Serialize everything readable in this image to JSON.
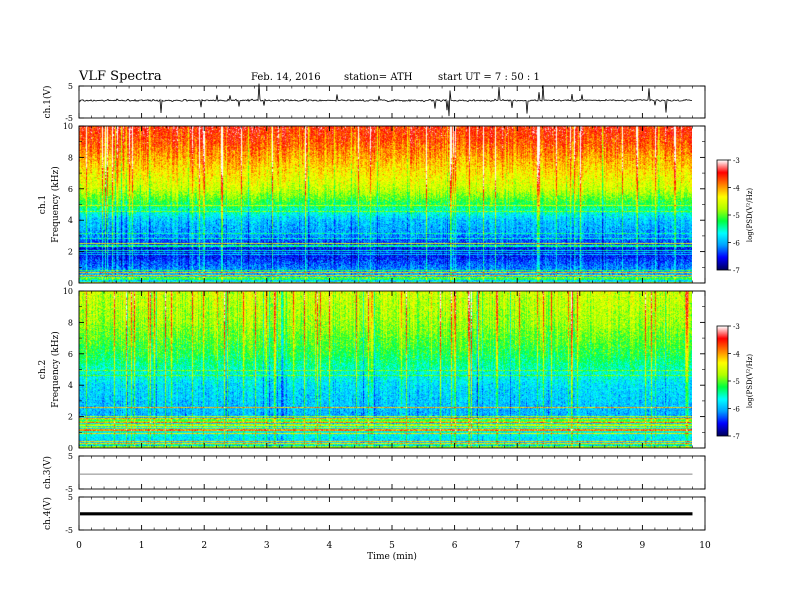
{
  "header": {
    "title": "VLF  Spectra",
    "date": "Feb. 14, 2016",
    "station": "station= ATH",
    "start": "start  UT  =   7  : 50 : 1"
  },
  "chart_data": {
    "type": "heatmap",
    "title": "VLF  Spectra",
    "xlabel": "Time  (min)",
    "xlim": [
      0,
      10
    ],
    "x_ticks": [
      "0",
      "1",
      "2",
      "3",
      "4",
      "5",
      "6",
      "7",
      "8",
      "9",
      "10"
    ],
    "data_end_min": 9.8,
    "colormap": [
      "#000060",
      "#0000ff",
      "#00a0ff",
      "#00ffff",
      "#00ff40",
      "#b0ff00",
      "#ffff00",
      "#ff8000",
      "#ff0000",
      "#ffffff"
    ],
    "colorbar": {
      "label": "log(PSD(V²/Hz)",
      "ticks": [
        "-3",
        "-4",
        "-5",
        "-6",
        "-7"
      ],
      "range": [
        -7,
        -3
      ]
    },
    "panels": [
      {
        "name": "ch1-waveform",
        "type": "line",
        "ylabel": "ch.1(V)",
        "ylim": [
          -5,
          5
        ],
        "y_ticks": [
          "5",
          "-5"
        ],
        "description_level_V": 0.5
      },
      {
        "name": "ch1-spectrogram",
        "type": "heatmap",
        "ylabel_top": "ch.1",
        "ylabel": "Frequency  (kHz)",
        "ylim": [
          0,
          10
        ],
        "y_ticks": [
          "0",
          "2",
          "4",
          "6",
          "8",
          "10"
        ],
        "band_log_psd": [
          [
            0,
            -5.8
          ],
          [
            1,
            -6.2
          ],
          [
            2,
            -6.6
          ],
          [
            3,
            -6.1
          ],
          [
            4,
            -5.9
          ],
          [
            5,
            -5.2
          ],
          [
            6,
            -4.6
          ],
          [
            7,
            -4.3
          ],
          [
            8,
            -4.0
          ],
          [
            9,
            -3.7
          ],
          [
            10,
            -3.5
          ]
        ]
      },
      {
        "name": "ch2-spectrogram",
        "type": "heatmap",
        "ylabel_top": "ch.2",
        "ylabel": "Frequency  (kHz)",
        "ylim": [
          0,
          10
        ],
        "y_ticks": [
          "0",
          "2",
          "4",
          "6",
          "8",
          "10"
        ],
        "band_log_psd": [
          [
            0,
            -6.0
          ],
          [
            1,
            -5.6
          ],
          [
            2,
            -6.0
          ],
          [
            3,
            -5.9
          ],
          [
            4,
            -5.8
          ],
          [
            5,
            -5.5
          ],
          [
            6,
            -5.2
          ],
          [
            7,
            -5.0
          ],
          [
            8,
            -4.8
          ],
          [
            9,
            -4.7
          ],
          [
            10,
            -4.6
          ]
        ]
      },
      {
        "name": "ch3-waveform",
        "type": "line",
        "ylabel": "ch.3(V)",
        "ylim": [
          -5,
          5
        ],
        "y_ticks": [
          "5",
          "-5"
        ],
        "description_level_V": -0.5
      },
      {
        "name": "ch4-waveform",
        "type": "line",
        "ylabel": "ch.4(V)",
        "ylim": [
          -5,
          5
        ],
        "y_ticks": [
          "5",
          "-5"
        ],
        "description_level_V": -0.1
      }
    ]
  }
}
